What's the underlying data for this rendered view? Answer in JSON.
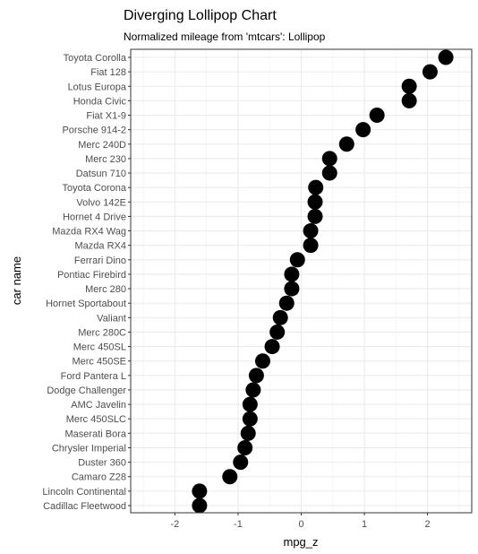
{
  "chart_data": {
    "type": "scatter",
    "title": "Diverging Lollipop Chart",
    "subtitle": "Normalized mileage from 'mtcars': Lollipop",
    "xlabel": "mpg_z",
    "ylabel": "car name",
    "xlim": [
      -2.7,
      2.7
    ],
    "xticks": [
      "-2",
      "-1",
      "0",
      "1",
      "2"
    ],
    "grid": true,
    "point_color": "#000000",
    "categories": [
      "Cadillac Fleetwood",
      "Lincoln Continental",
      "Camaro Z28",
      "Duster 360",
      "Chrysler Imperial",
      "Maserati Bora",
      "Merc 450SLC",
      "AMC Javelin",
      "Dodge Challenger",
      "Ford Pantera L",
      "Merc 450SE",
      "Merc 450SL",
      "Merc 280C",
      "Valiant",
      "Hornet Sportabout",
      "Merc 280",
      "Pontiac Firebird",
      "Ferrari Dino",
      "Mazda RX4",
      "Mazda RX4 Wag",
      "Hornet 4 Drive",
      "Volvo 142E",
      "Toyota Corona",
      "Datsun 710",
      "Merc 230",
      "Merc 240D",
      "Porsche 914-2",
      "Fiat X1-9",
      "Honda Civic",
      "Lotus Europa",
      "Fiat 128",
      "Toyota Corolla"
    ],
    "values": [
      -1.61,
      -1.61,
      -1.13,
      -0.96,
      -0.89,
      -0.84,
      -0.81,
      -0.81,
      -0.76,
      -0.71,
      -0.61,
      -0.46,
      -0.38,
      -0.33,
      -0.23,
      -0.15,
      -0.15,
      -0.06,
      0.15,
      0.15,
      0.22,
      0.22,
      0.23,
      0.45,
      0.45,
      0.72,
      0.98,
      1.2,
      1.71,
      1.71,
      2.04,
      2.29
    ]
  }
}
